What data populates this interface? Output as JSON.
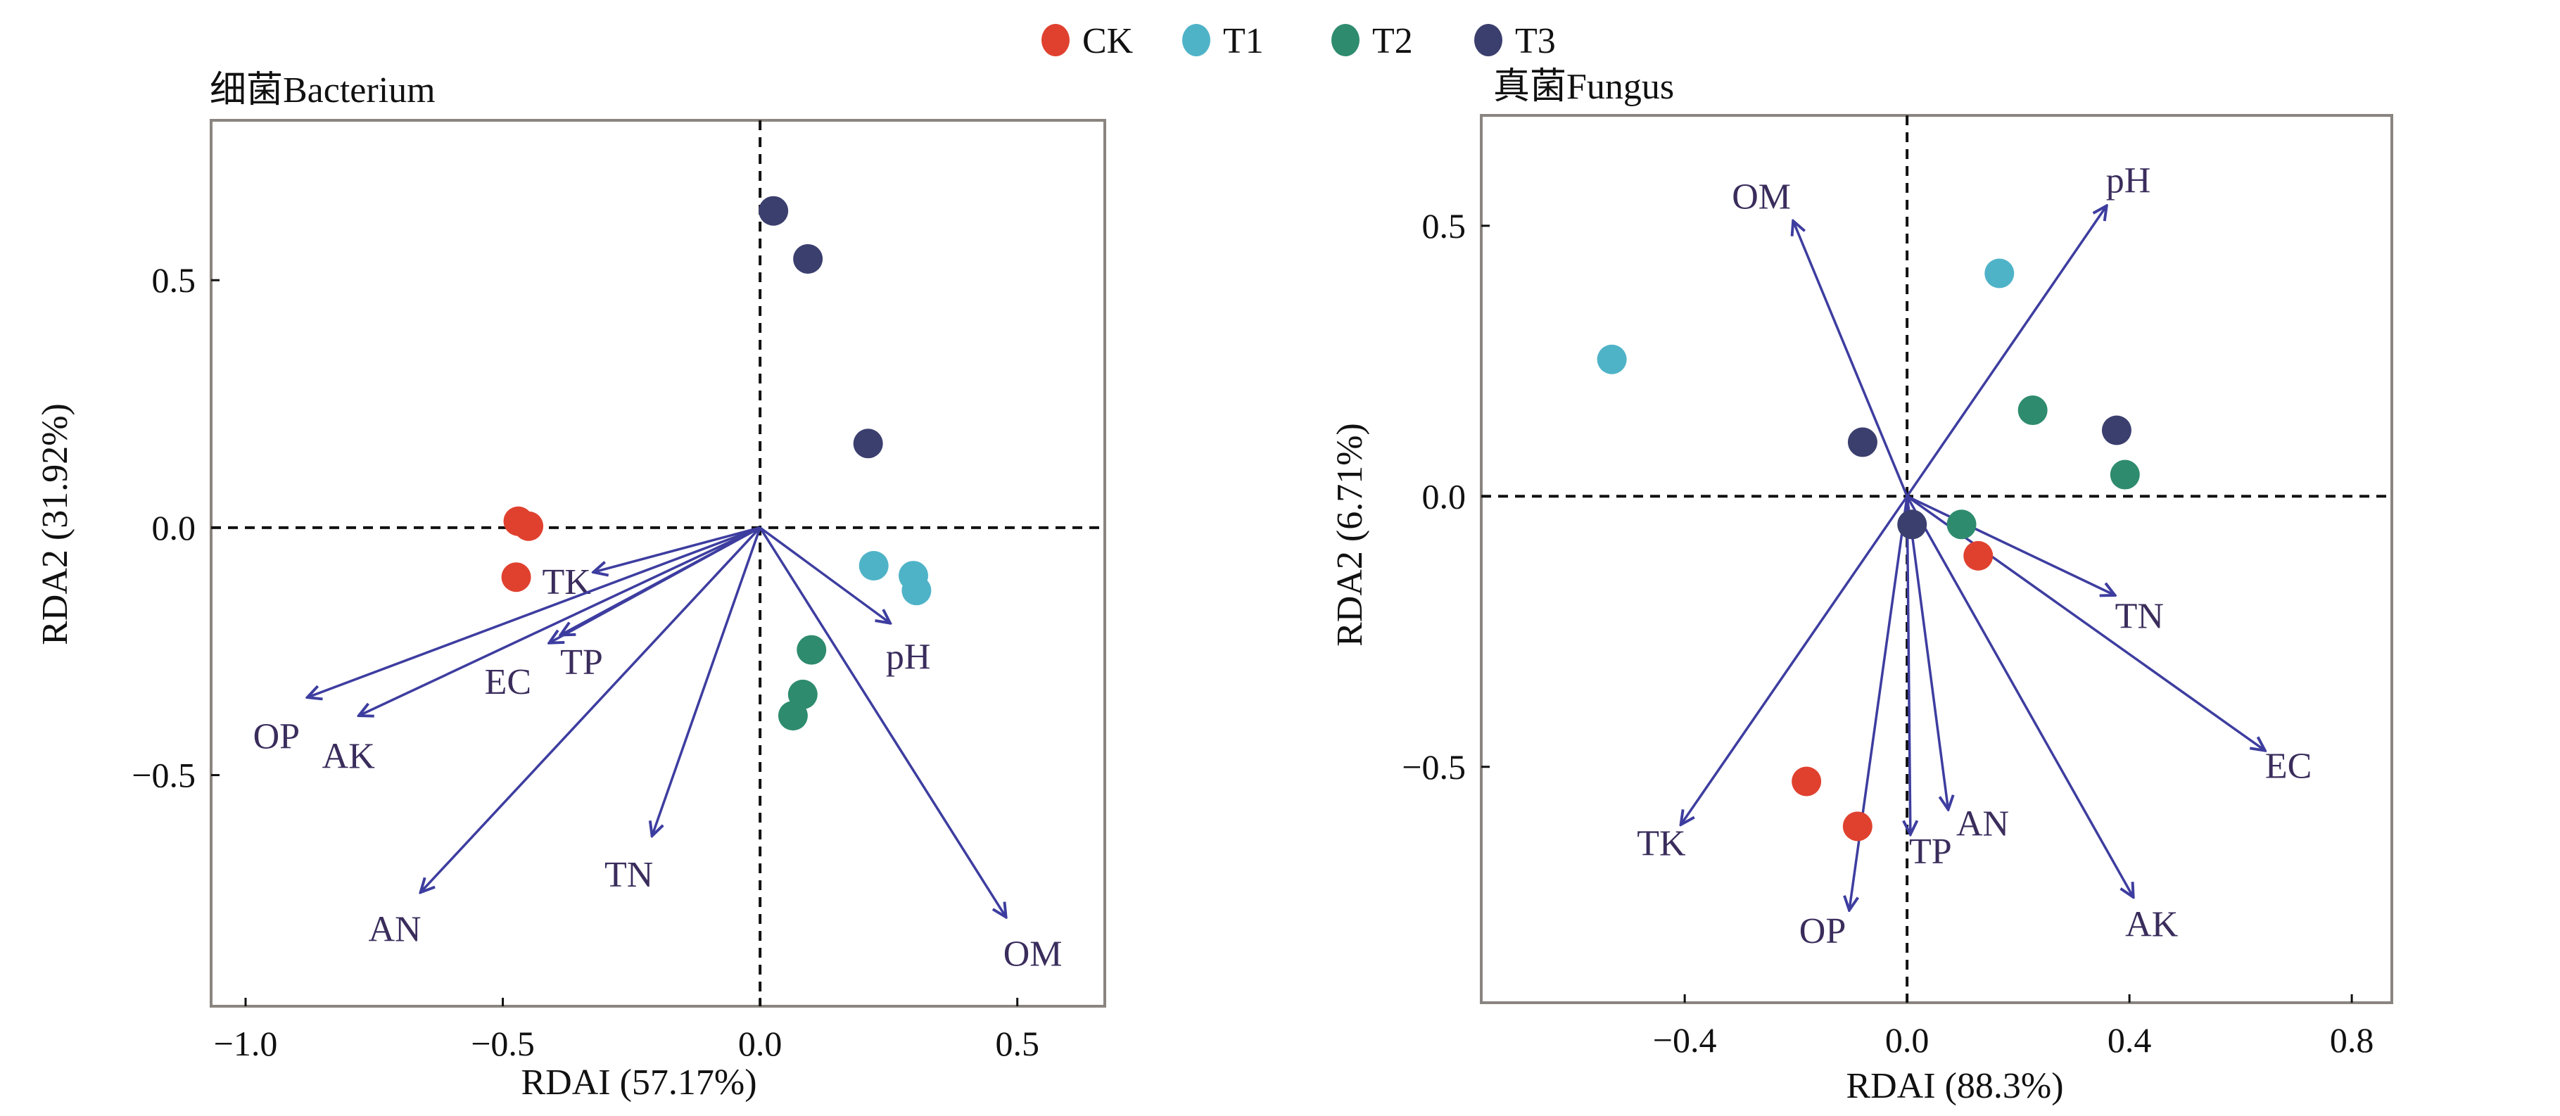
{
  "legend": {
    "items": [
      {
        "label": "CK",
        "color": "#e0412f"
      },
      {
        "label": "T1",
        "color": "#4fb3c8"
      },
      {
        "label": "T2",
        "color": "#2e8b6e"
      },
      {
        "label": "T3",
        "color": "#3b3f6e"
      }
    ]
  },
  "arrow_color": "#3d3da0",
  "label_color": "#3a2d5c",
  "chart_data": [
    {
      "type": "scatter",
      "title": "细菌Bacterium",
      "xlabel": "RDAI (57.17%)",
      "ylabel": "RDA2 (31.92%)",
      "xlim": [
        -1.067,
        0.67
      ],
      "ylim": [
        -0.967,
        0.823
      ],
      "xticks": [
        -1.0,
        -0.5,
        0.0,
        0.5
      ],
      "xtick_labels": [
        "−1.0",
        "−0.5",
        "0.0",
        "0.5"
      ],
      "yticks": [
        -0.5,
        0.0,
        0.5
      ],
      "ytick_labels": [
        "−0.5",
        "0.0",
        "0.5"
      ],
      "reference_lines": {
        "x": 0,
        "y": 0,
        "style": "dashed"
      },
      "grid": false,
      "series": [
        {
          "name": "CK",
          "points": [
            [
              -0.47,
              0.013
            ],
            [
              -0.45,
              0.003
            ],
            [
              -0.474,
              -0.1
            ]
          ]
        },
        {
          "name": "T1",
          "points": [
            [
              0.221,
              -0.077
            ],
            [
              0.298,
              -0.097
            ],
            [
              0.304,
              -0.127
            ]
          ]
        },
        {
          "name": "T2",
          "points": [
            [
              0.1,
              -0.247
            ],
            [
              0.083,
              -0.337
            ],
            [
              0.064,
              -0.38
            ]
          ]
        },
        {
          "name": "T3",
          "points": [
            [
              0.026,
              0.64
            ],
            [
              0.093,
              0.543
            ],
            [
              0.21,
              0.17
            ]
          ]
        }
      ],
      "vectors": [
        {
          "name": "TK",
          "x": -0.324,
          "y": -0.09,
          "label_at": [
            -0.376,
            -0.108
          ]
        },
        {
          "name": "TP",
          "x": -0.388,
          "y": -0.217,
          "label_at": [
            -0.347,
            -0.27
          ]
        },
        {
          "name": "EC",
          "x": -0.41,
          "y": -0.233,
          "label_at": [
            -0.49,
            -0.31
          ]
        },
        {
          "name": "OP",
          "x": -0.88,
          "y": -0.343,
          "label_at": [
            -0.94,
            -0.42
          ]
        },
        {
          "name": "AK",
          "x": -0.78,
          "y": -0.38,
          "label_at": [
            -0.8,
            -0.46
          ]
        },
        {
          "name": "AN",
          "x": -0.66,
          "y": -0.737,
          "label_at": [
            -0.71,
            -0.81
          ]
        },
        {
          "name": "TN",
          "x": -0.21,
          "y": -0.623,
          "label_at": [
            -0.255,
            -0.7
          ]
        },
        {
          "name": "pH",
          "x": 0.253,
          "y": -0.193,
          "label_at": [
            0.288,
            -0.26
          ]
        },
        {
          "name": "OM",
          "x": 0.478,
          "y": -0.787,
          "label_at": [
            0.53,
            -0.86
          ]
        }
      ]
    },
    {
      "type": "scatter",
      "title": "真菌Fungus",
      "xlabel": "RDAI (88.3%)",
      "ylabel": "RDA2 (6.71%)",
      "xlim": [
        -0.766,
        0.872
      ],
      "ylim": [
        -0.936,
        0.704
      ],
      "xticks": [
        -0.4,
        0.0,
        0.4,
        0.8
      ],
      "xtick_labels": [
        "−0.4",
        "0.0",
        "0.4",
        "0.8"
      ],
      "yticks": [
        -0.5,
        0.0,
        0.5
      ],
      "ytick_labels": [
        "−0.5",
        "0.0",
        "0.5"
      ],
      "reference_lines": {
        "x": 0,
        "y": 0,
        "style": "dashed"
      },
      "grid": false,
      "series": [
        {
          "name": "CK",
          "points": [
            [
              0.128,
              -0.11
            ],
            [
              -0.181,
              -0.527
            ],
            [
              -0.089,
              -0.61
            ]
          ]
        },
        {
          "name": "T1",
          "points": [
            [
              -0.531,
              0.253
            ],
            [
              0.166,
              0.412
            ]
          ]
        },
        {
          "name": "T2",
          "points": [
            [
              0.226,
              0.159
            ],
            [
              0.392,
              0.04
            ],
            [
              0.098,
              -0.052
            ]
          ]
        },
        {
          "name": "T3",
          "points": [
            [
              -0.08,
              0.1
            ],
            [
              0.377,
              0.122
            ],
            [
              0.009,
              -0.052
            ]
          ]
        }
      ],
      "vectors": [
        {
          "name": "OM",
          "x": -0.205,
          "y": 0.509,
          "label_at": [
            -0.262,
            0.555
          ]
        },
        {
          "name": "pH",
          "x": 0.359,
          "y": 0.537,
          "label_at": [
            0.398,
            0.585
          ]
        },
        {
          "name": "TN",
          "x": 0.374,
          "y": -0.183,
          "label_at": [
            0.418,
            -0.22
          ]
        },
        {
          "name": "EC",
          "x": 0.644,
          "y": -0.47,
          "label_at": [
            0.686,
            -0.497
          ]
        },
        {
          "name": "TK",
          "x": -0.407,
          "y": -0.607,
          "label_at": [
            -0.442,
            -0.64
          ]
        },
        {
          "name": "OP",
          "x": -0.104,
          "y": -0.765,
          "label_at": [
            -0.152,
            -0.802
          ]
        },
        {
          "name": "TP",
          "x": 0.006,
          "y": -0.625,
          "label_at": [
            0.042,
            -0.655
          ]
        },
        {
          "name": "AN",
          "x": 0.074,
          "y": -0.579,
          "label_at": [
            0.136,
            -0.604
          ]
        },
        {
          "name": "AK",
          "x": 0.407,
          "y": -0.741,
          "label_at": [
            0.44,
            -0.79
          ]
        }
      ]
    }
  ]
}
